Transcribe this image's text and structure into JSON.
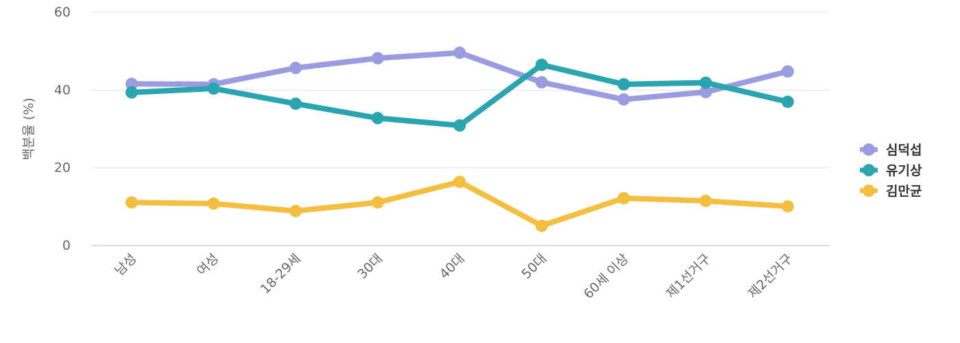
{
  "chart_data": {
    "type": "line",
    "ylabel": "백분율 (%)",
    "ylim": [
      0,
      60
    ],
    "yticks": [
      0,
      20,
      40,
      60
    ],
    "grid": true,
    "legend_position": "right",
    "categories": [
      "남성",
      "여성",
      "18-29세",
      "30대",
      "40대",
      "50대",
      "60세 이상",
      "제1선거구",
      "제2선거구"
    ],
    "series": [
      {
        "name": "심덕섭",
        "color": "#9b9be0",
        "values": [
          41.6,
          41.5,
          45.7,
          48.2,
          49.6,
          42.0,
          37.6,
          39.5,
          44.8
        ]
      },
      {
        "name": "유기상",
        "color": "#2aa5b0",
        "values": [
          39.4,
          40.4,
          36.5,
          32.8,
          30.9,
          46.5,
          41.5,
          41.9,
          37.0
        ]
      },
      {
        "name": "김만균",
        "color": "#f4bf40",
        "values": [
          11.1,
          10.8,
          8.9,
          11.1,
          16.4,
          5.1,
          12.2,
          11.5,
          10.1
        ]
      }
    ]
  }
}
